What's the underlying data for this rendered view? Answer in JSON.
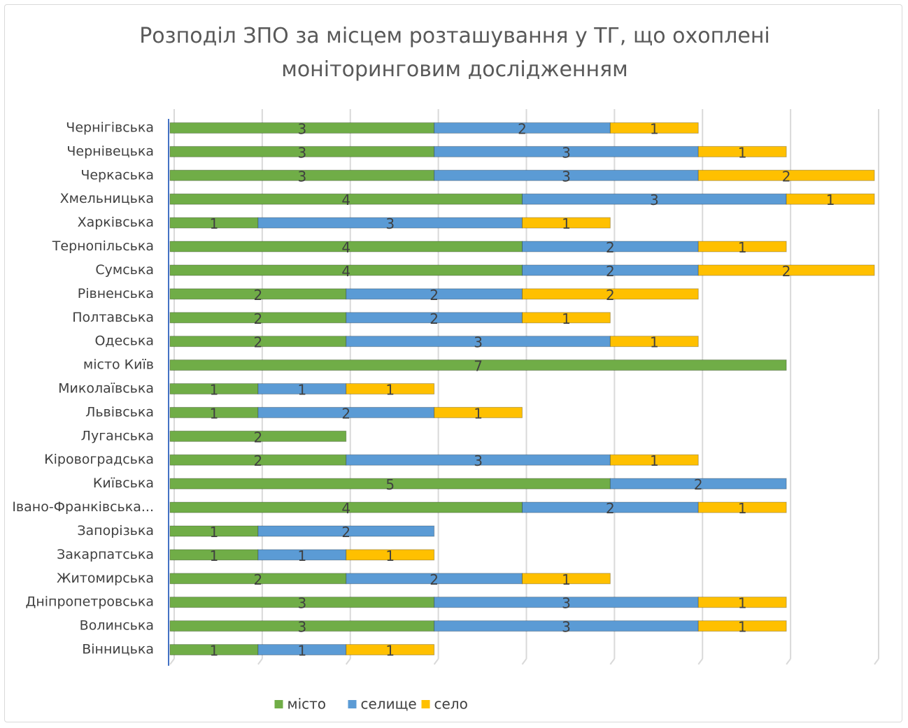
{
  "chart_data": {
    "type": "stacked-bar-horizontal",
    "title": "Розподіл ЗПО за місцем розташування у ТГ, що охоплені моніторинговим дослідженням",
    "categories": [
      "Чернігівська",
      "Чернівецька",
      "Черкаська ",
      "Хмельницька",
      "Харківська ",
      "Тернопільська",
      "Сумська",
      "Рівненська",
      "Полтавська ",
      "Одеська",
      "місто Київ",
      "Миколаївська",
      "Львівська",
      "Луганська",
      "Кіровоградська",
      "Київська",
      "Івано-Франківська...",
      "Запорізька",
      "Закарпатська ",
      "Житомирська",
      "Дніпропетровська",
      "Волинська",
      "Вінницька"
    ],
    "series": [
      {
        "name": "місто",
        "color": "#70ad47",
        "values": [
          3,
          3,
          3,
          4,
          1,
          4,
          4,
          2,
          2,
          2,
          7,
          1,
          1,
          2,
          2,
          5,
          4,
          1,
          1,
          2,
          3,
          3,
          1
        ]
      },
      {
        "name": "селище",
        "color": "#5b9bd5",
        "values": [
          2,
          3,
          3,
          3,
          3,
          2,
          2,
          2,
          2,
          3,
          null,
          1,
          2,
          null,
          3,
          2,
          2,
          2,
          1,
          2,
          3,
          3,
          1
        ]
      },
      {
        "name": "село",
        "color": "#ffc000",
        "values": [
          1,
          1,
          2,
          1,
          1,
          1,
          2,
          2,
          1,
          1,
          null,
          1,
          1,
          null,
          1,
          null,
          1,
          null,
          1,
          1,
          1,
          1,
          1
        ]
      }
    ],
    "xlim": [
      0,
      8
    ],
    "xticks": [
      0,
      1,
      2,
      3,
      4,
      5,
      6,
      7,
      8
    ],
    "grid": true,
    "legend": "bottom"
  }
}
